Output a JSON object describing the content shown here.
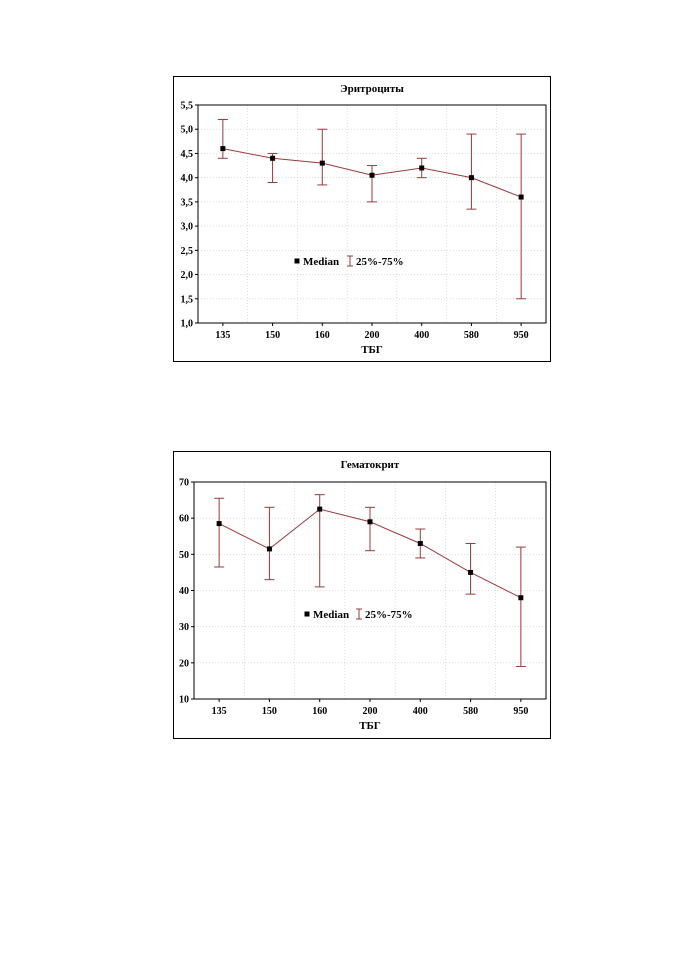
{
  "chart_data": [
    {
      "type": "line",
      "title": "Эритроциты",
      "xlabel": "ТБГ",
      "ylabel": "",
      "categories": [
        "135",
        "150",
        "160",
        "200",
        "400",
        "580",
        "950"
      ],
      "ylim": [
        1.0,
        5.5
      ],
      "yticks": [
        "1,0",
        "1,5",
        "2,0",
        "2,5",
        "3,0",
        "3,5",
        "4,0",
        "4,5",
        "5,0",
        "5,5"
      ],
      "ytick_values": [
        1.0,
        1.5,
        2.0,
        2.5,
        3.0,
        3.5,
        4.0,
        4.5,
        5.0,
        5.5
      ],
      "grid": true,
      "legend": {
        "median_label": "Median",
        "range_label": "25%-75%",
        "placement": "center-left"
      },
      "series": [
        {
          "name": "Median",
          "values": [
            4.6,
            4.4,
            4.3,
            4.05,
            4.2,
            4.0,
            3.6
          ],
          "q25": [
            4.4,
            3.9,
            3.85,
            3.5,
            4.0,
            3.35,
            1.5
          ],
          "q75": [
            5.2,
            4.5,
            5.0,
            4.25,
            4.4,
            4.9,
            4.9
          ]
        }
      ],
      "colors": {
        "line": "#9b3a3a",
        "marker": "#000000"
      }
    },
    {
      "type": "line",
      "title": "Гематокрит",
      "xlabel": "ТБГ",
      "ylabel": "",
      "categories": [
        "135",
        "150",
        "160",
        "200",
        "400",
        "580",
        "950"
      ],
      "ylim": [
        10,
        70
      ],
      "yticks": [
        "10",
        "20",
        "30",
        "40",
        "50",
        "60",
        "70"
      ],
      "ytick_values": [
        10,
        20,
        30,
        40,
        50,
        60,
        70
      ],
      "grid": true,
      "legend": {
        "median_label": "Median",
        "range_label": "25%-75%",
        "placement": "center"
      },
      "series": [
        {
          "name": "Median",
          "values": [
            58.5,
            51.5,
            62.5,
            59.0,
            53.0,
            45.0,
            38.0
          ],
          "q25": [
            46.5,
            43.0,
            41.0,
            51.0,
            49.0,
            39.0,
            19.0
          ],
          "q75": [
            65.5,
            63.0,
            66.5,
            63.0,
            57.0,
            53.0,
            52.0
          ]
        }
      ],
      "colors": {
        "line": "#9b3a3a",
        "marker": "#000000"
      }
    }
  ]
}
